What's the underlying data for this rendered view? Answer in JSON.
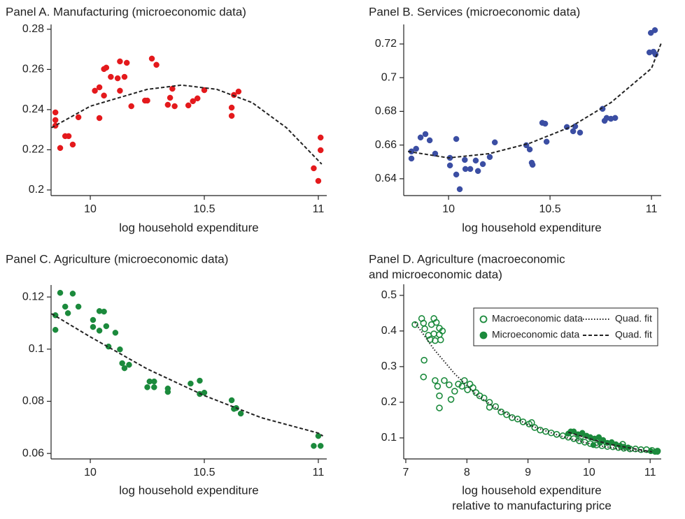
{
  "chart_data": [
    {
      "type": "scatter",
      "title": "Panel A. Manufacturing (microeconomic data)",
      "xlabel": "log household expenditure",
      "xlim": [
        9.828,
        11.037
      ],
      "ylim": [
        0.1972,
        0.2824
      ],
      "xticks": [
        10,
        10.5,
        11
      ],
      "yticks": [
        0.2,
        0.22,
        0.24,
        0.26,
        0.28
      ],
      "series": [
        {
          "kind": "points",
          "marker": "filled",
          "color": "#e4191c",
          "x": [
            9.847,
            9.847,
            9.847,
            9.868,
            9.89,
            9.905,
            9.923,
            9.948,
            10.02,
            10.04,
            10.06,
            10.06,
            10.07,
            10.09,
            10.12,
            10.13,
            10.04,
            10.13,
            10.16,
            10.15,
            10.18,
            10.24,
            10.25,
            10.27,
            10.29,
            10.34,
            10.35,
            10.37,
            10.36,
            10.43,
            10.45,
            10.47,
            10.5,
            10.62,
            10.62,
            10.63,
            10.65,
            10.98,
            11.0,
            11.01,
            11.01
          ],
          "values": [
            0.2386,
            0.2348,
            0.232,
            0.2209,
            0.2268,
            0.2268,
            0.2226,
            0.2362,
            0.2494,
            0.2511,
            0.2602,
            0.247,
            0.2609,
            0.2563,
            0.2556,
            0.2494,
            0.2358,
            0.264,
            0.2633,
            0.2563,
            0.2417,
            0.2445,
            0.2445,
            0.2654,
            0.2623,
            0.2424,
            0.2459,
            0.2417,
            0.2504,
            0.2421,
            0.2442,
            0.2456,
            0.2497,
            0.2369,
            0.241,
            0.2473,
            0.249,
            0.2108,
            0.2045,
            0.2198,
            0.2261
          ]
        },
        {
          "kind": "line",
          "dash": "dashed",
          "color": "#222222",
          "x": [
            9.83,
            10.0,
            10.25,
            10.4,
            10.555,
            10.71,
            10.86,
            11.015
          ],
          "values": [
            0.231,
            0.2417,
            0.2501,
            0.2522,
            0.2501,
            0.2435,
            0.231,
            0.2129
          ]
        }
      ]
    },
    {
      "type": "scatter",
      "title": "Panel B. Services (microeconomic data)",
      "xlabel": "log household expenditure",
      "xlim": [
        9.779,
        11.048
      ],
      "ylim": [
        0.63,
        0.7316
      ],
      "xticks": [
        10,
        10.5,
        11
      ],
      "yticks": [
        0.64,
        0.66,
        0.68,
        0.7,
        0.72
      ],
      "series": [
        {
          "kind": "points",
          "marker": "filled",
          "color": "#3b4ea3",
          "x": [
            9.817,
            9.817,
            9.84,
            9.862,
            9.886,
            9.907,
            9.934,
            10.007,
            10.007,
            10.038,
            10.038,
            10.055,
            10.08,
            10.083,
            10.107,
            10.134,
            10.145,
            10.169,
            10.203,
            10.228,
            10.383,
            10.4,
            10.41,
            10.414,
            10.462,
            10.476,
            10.483,
            10.583,
            10.614,
            10.624,
            10.648,
            10.759,
            10.769,
            10.779,
            10.8,
            10.821,
            10.99,
            11.01,
            11.02,
            10.997,
            11.017
          ],
          "values": [
            0.6562,
            0.652,
            0.6578,
            0.6645,
            0.6665,
            0.6628,
            0.6549,
            0.6524,
            0.6479,
            0.6425,
            0.6636,
            0.6338,
            0.6512,
            0.6458,
            0.6458,
            0.6508,
            0.6446,
            0.6487,
            0.6529,
            0.6616,
            0.6599,
            0.6574,
            0.6495,
            0.6483,
            0.6732,
            0.6727,
            0.662,
            0.6707,
            0.6682,
            0.6711,
            0.6674,
            0.6815,
            0.6744,
            0.6761,
            0.6756,
            0.6761,
            0.715,
            0.7154,
            0.7138,
            0.7266,
            0.7282
          ]
        },
        {
          "kind": "line",
          "dash": "dashed",
          "color": "#222222",
          "x": [
            9.8,
            10.0,
            10.2,
            10.4,
            10.6,
            10.8,
            11.0,
            11.05
          ],
          "values": [
            0.6562,
            0.6524,
            0.6549,
            0.6611,
            0.6707,
            0.6852,
            0.7055,
            0.7212
          ]
        }
      ]
    },
    {
      "type": "scatter",
      "title": "Panel C. Agriculture (microeconomic data)",
      "xlabel": "log household expenditure",
      "xlim": [
        9.828,
        11.037
      ],
      "ylim": [
        0.0579,
        0.1246
      ],
      "xticks": [
        10,
        10.5,
        11
      ],
      "yticks": [
        0.06,
        0.08,
        0.1,
        0.12
      ],
      "series": [
        {
          "kind": "points",
          "marker": "filled",
          "color": "#1b8a3c",
          "x": [
            9.847,
            9.847,
            9.868,
            9.89,
            9.902,
            9.923,
            9.948,
            10.012,
            10.012,
            10.04,
            10.04,
            10.06,
            10.07,
            10.08,
            10.11,
            10.13,
            10.14,
            10.15,
            10.17,
            10.25,
            10.26,
            10.28,
            10.28,
            10.34,
            10.34,
            10.44,
            10.48,
            10.48,
            10.5,
            10.62,
            10.63,
            10.64,
            10.66,
            10.98,
            11.0,
            11.01
          ],
          "values": [
            0.113,
            0.1074,
            0.1216,
            0.1163,
            0.1138,
            0.1213,
            0.1163,
            0.1112,
            0.1085,
            0.1071,
            0.1146,
            0.1144,
            0.1088,
            0.101,
            0.1063,
            0.0999,
            0.0946,
            0.0927,
            0.094,
            0.0854,
            0.0876,
            0.0876,
            0.0854,
            0.0849,
            0.0836,
            0.0868,
            0.0879,
            0.0828,
            0.0833,
            0.0804,
            0.0771,
            0.0774,
            0.0753,
            0.0629,
            0.0667,
            0.0629
          ]
        },
        {
          "kind": "line",
          "dash": "dashed",
          "color": "#222222",
          "x": [
            9.83,
            10.0,
            10.25,
            10.5,
            10.75,
            11.0,
            11.02
          ],
          "values": [
            0.1136,
            0.1047,
            0.0924,
            0.0822,
            0.0737,
            0.0678,
            0.0667
          ]
        }
      ]
    },
    {
      "type": "scatter",
      "title": [
        "Panel D. Agriculture (macroeconomic",
        "and microeconomic data)"
      ],
      "xlabel": [
        "log household expenditure",
        "relative to manufacturing price"
      ],
      "xlim": [
        6.966,
        11.181
      ],
      "ylim": [
        0.041,
        0.531
      ],
      "xticks": [
        7,
        8,
        9,
        10,
        11
      ],
      "yticks": [
        0.1,
        0.2,
        0.3,
        0.4,
        0.5
      ],
      "legend": "upper right",
      "series": [
        {
          "name": "Macroeconomic data",
          "kind": "points",
          "marker": "hollow",
          "color": "#1b8a3c",
          "x": [
            7.15,
            7.26,
            7.29,
            7.31,
            7.37,
            7.42,
            7.46,
            7.5,
            7.55,
            7.6,
            7.55,
            7.46,
            7.4,
            7.48,
            7.57,
            7.3,
            7.29,
            7.48,
            7.52,
            7.55,
            7.55,
            7.63,
            7.71,
            7.74,
            7.8,
            7.86,
            7.92,
            7.96,
            8.01,
            8.05,
            8.1,
            8.15,
            8.21,
            8.28,
            8.37,
            8.47,
            8.56,
            8.65,
            8.74,
            8.83,
            8.92,
            9.02,
            9.11,
            9.2,
            9.29,
            9.38,
            9.47,
            9.57,
            9.66,
            9.75,
            9.84,
            9.93,
            10.02,
            10.12,
            10.21,
            10.3,
            10.39,
            10.48,
            10.57,
            10.67,
            10.76,
            10.85,
            10.94,
            11.03,
            11.12,
            8.37,
            9.06,
            9.86,
            10.55
          ],
          "values": [
            0.418,
            0.435,
            0.422,
            0.406,
            0.388,
            0.418,
            0.435,
            0.424,
            0.408,
            0.4,
            0.39,
            0.392,
            0.376,
            0.373,
            0.375,
            0.318,
            0.271,
            0.261,
            0.245,
            0.218,
            0.184,
            0.261,
            0.249,
            0.208,
            0.231,
            0.251,
            0.245,
            0.261,
            0.235,
            0.251,
            0.241,
            0.227,
            0.218,
            0.212,
            0.2,
            0.188,
            0.173,
            0.165,
            0.157,
            0.153,
            0.145,
            0.139,
            0.129,
            0.122,
            0.118,
            0.114,
            0.11,
            0.106,
            0.102,
            0.098,
            0.092,
            0.088,
            0.084,
            0.08,
            0.078,
            0.076,
            0.075,
            0.073,
            0.071,
            0.069,
            0.069,
            0.067,
            0.067,
            0.065,
            0.063,
            0.186,
            0.143,
            0.102,
            0.082
          ]
        },
        {
          "name": "Quad. fit",
          "kind": "line",
          "dash": "dotted",
          "color": "#222222",
          "x": [
            7.15,
            7.46,
            7.8,
            8.15,
            8.49,
            9.0,
            9.52,
            10.09,
            10.67,
            11.12
          ],
          "values": [
            0.424,
            0.349,
            0.28,
            0.222,
            0.182,
            0.137,
            0.106,
            0.08,
            0.065,
            0.059
          ]
        },
        {
          "name": "Microeconomic data",
          "kind": "points",
          "marker": "filled",
          "color": "#1b8a3c",
          "x": [
            9.75,
            9.82,
            9.89,
            9.96,
            10.02,
            10.09,
            10.16,
            10.23,
            10.3,
            10.37,
            10.44,
            10.51,
            10.57,
            10.64,
            11.01,
            11.08,
            11.12,
            9.66,
            9.7,
            10.18,
            10.07
          ],
          "values": [
            0.118,
            0.11,
            0.114,
            0.106,
            0.102,
            0.098,
            0.102,
            0.094,
            0.086,
            0.088,
            0.082,
            0.078,
            0.075,
            0.073,
            0.063,
            0.061,
            0.061,
            0.112,
            0.118,
            0.086,
            0.08
          ]
        },
        {
          "name": "Quad. fit",
          "kind": "line",
          "dash": "dashed",
          "color": "#222222",
          "x": [
            9.66,
            10.0,
            10.34,
            10.69,
            11.03
          ],
          "values": [
            0.116,
            0.098,
            0.082,
            0.071,
            0.061
          ]
        }
      ]
    }
  ]
}
